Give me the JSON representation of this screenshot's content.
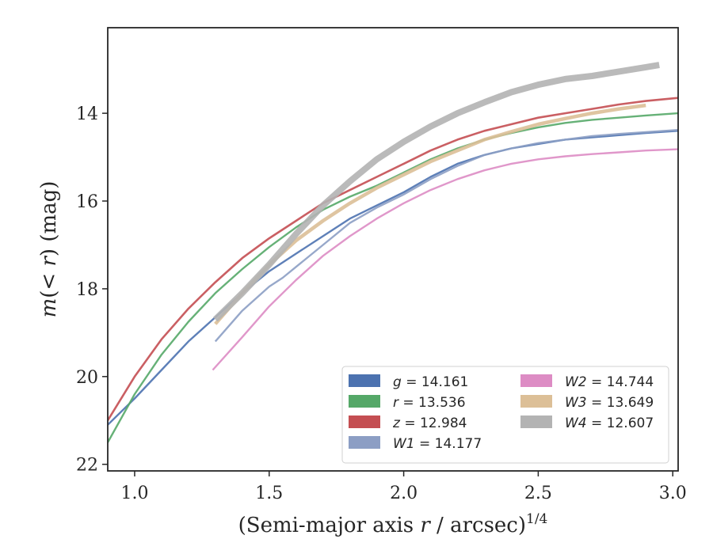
{
  "chart_data": {
    "type": "line",
    "xlabel": "(Semi-major axis r / arcsec)^{1/4}",
    "ylabel": "m(< r) (mag)",
    "xlim": [
      0.9,
      3.02
    ],
    "ylim": [
      22.15,
      12.05
    ],
    "y_inverted": true,
    "xticks": [
      1.0,
      1.5,
      2.0,
      2.5,
      3.0
    ],
    "xtick_labels": [
      "1.0",
      "1.5",
      "2.0",
      "2.5",
      "3.0"
    ],
    "yticks": [
      14,
      16,
      18,
      20,
      22
    ],
    "ytick_labels": [
      "14",
      "16",
      "18",
      "20",
      "22"
    ],
    "grid": false,
    "legend_position": "lower-right",
    "legend_columns": 2,
    "series": [
      {
        "band": "g",
        "label": "g = 14.161",
        "color": "#4c72b0",
        "x": [
          0.9,
          1.0,
          1.1,
          1.2,
          1.3,
          1.4,
          1.5,
          1.6,
          1.7,
          1.8,
          1.9,
          2.0,
          2.1,
          2.2,
          2.3,
          2.4,
          2.5,
          2.6,
          2.7,
          2.8,
          2.9,
          3.02
        ],
        "y": [
          21.1,
          20.5,
          19.85,
          19.2,
          18.65,
          18.1,
          17.6,
          17.2,
          16.8,
          16.4,
          16.1,
          15.8,
          15.45,
          15.15,
          14.95,
          14.8,
          14.7,
          14.6,
          14.55,
          14.5,
          14.45,
          14.4
        ]
      },
      {
        "band": "r",
        "label": "r = 13.536",
        "color": "#55a868",
        "x": [
          0.9,
          1.0,
          1.1,
          1.2,
          1.3,
          1.4,
          1.5,
          1.6,
          1.7,
          1.8,
          1.9,
          2.0,
          2.1,
          2.2,
          2.3,
          2.4,
          2.5,
          2.6,
          2.7,
          2.8,
          2.9,
          3.02
        ],
        "y": [
          21.5,
          20.4,
          19.5,
          18.75,
          18.1,
          17.55,
          17.05,
          16.6,
          16.2,
          15.9,
          15.65,
          15.35,
          15.05,
          14.8,
          14.6,
          14.45,
          14.32,
          14.22,
          14.15,
          14.1,
          14.05,
          14.0
        ]
      },
      {
        "band": "z",
        "label": "z = 12.984",
        "color": "#c44e52",
        "x": [
          0.9,
          1.0,
          1.1,
          1.2,
          1.3,
          1.4,
          1.5,
          1.6,
          1.7,
          1.8,
          1.9,
          2.0,
          2.1,
          2.2,
          2.3,
          2.4,
          2.5,
          2.6,
          2.7,
          2.8,
          2.9,
          3.02
        ],
        "y": [
          21.0,
          20.0,
          19.15,
          18.45,
          17.85,
          17.3,
          16.85,
          16.45,
          16.05,
          15.75,
          15.45,
          15.15,
          14.85,
          14.6,
          14.4,
          14.25,
          14.1,
          14.0,
          13.9,
          13.8,
          13.72,
          13.65
        ]
      },
      {
        "band": "W1",
        "label": "W1 = 14.177",
        "color": "#8c9ec4",
        "x": [
          1.3,
          1.4,
          1.5,
          1.55,
          1.6,
          1.7,
          1.8,
          1.9,
          2.0,
          2.1,
          2.2,
          2.3,
          2.4,
          2.5,
          2.6,
          2.7,
          2.8,
          2.9,
          3.02
        ],
        "y": [
          19.2,
          18.5,
          17.95,
          17.75,
          17.5,
          17.0,
          16.5,
          16.15,
          15.85,
          15.5,
          15.2,
          14.95,
          14.8,
          14.68,
          14.6,
          14.52,
          14.47,
          14.43,
          14.38
        ]
      },
      {
        "band": "W2",
        "label": "W2 = 14.744",
        "color": "#dd8cc4",
        "x": [
          1.29,
          1.4,
          1.5,
          1.6,
          1.7,
          1.8,
          1.9,
          2.0,
          2.1,
          2.2,
          2.3,
          2.4,
          2.5,
          2.6,
          2.7,
          2.8,
          2.9,
          3.02
        ],
        "y": [
          19.85,
          19.1,
          18.4,
          17.8,
          17.25,
          16.8,
          16.4,
          16.05,
          15.75,
          15.5,
          15.3,
          15.15,
          15.05,
          14.98,
          14.93,
          14.89,
          14.85,
          14.82
        ]
      },
      {
        "band": "W3",
        "label": "W3 = 13.649",
        "color": "#dcbf97",
        "x": [
          1.3,
          1.4,
          1.5,
          1.6,
          1.7,
          1.8,
          1.9,
          2.0,
          2.1,
          2.2,
          2.3,
          2.4,
          2.5,
          2.6,
          2.7,
          2.8,
          2.9
        ],
        "y": [
          18.8,
          18.1,
          17.45,
          16.9,
          16.45,
          16.05,
          15.7,
          15.4,
          15.1,
          14.85,
          14.6,
          14.42,
          14.25,
          14.12,
          14.0,
          13.9,
          13.82
        ]
      },
      {
        "band": "W4",
        "label": "W4 = 12.607",
        "color": "#b3b3b3",
        "x": [
          1.3,
          1.4,
          1.5,
          1.6,
          1.7,
          1.8,
          1.9,
          2.0,
          2.1,
          2.2,
          2.3,
          2.4,
          2.5,
          2.6,
          2.7,
          2.8,
          2.9,
          2.95
        ],
        "y": [
          18.7,
          18.1,
          17.45,
          16.75,
          16.1,
          15.55,
          15.05,
          14.65,
          14.3,
          14.0,
          13.75,
          13.52,
          13.35,
          13.22,
          13.15,
          13.05,
          12.95,
          12.9
        ]
      }
    ],
    "legend": [
      {
        "prefix": "g",
        "text": " = 14.161",
        "color": "#4c72b0"
      },
      {
        "prefix": "r",
        "text": " = 13.536",
        "color": "#55a868"
      },
      {
        "prefix": "z",
        "text": " = 12.984",
        "color": "#c44e52"
      },
      {
        "prefix": "W1",
        "text": " = 14.177",
        "color": "#8c9ec4"
      },
      {
        "prefix": "W2",
        "text": " = 14.744",
        "color": "#dd8cc4"
      },
      {
        "prefix": "W3",
        "text": " = 13.649",
        "color": "#dcbf97"
      },
      {
        "prefix": "W4",
        "text": " = 12.607",
        "color": "#b3b3b3"
      }
    ]
  }
}
